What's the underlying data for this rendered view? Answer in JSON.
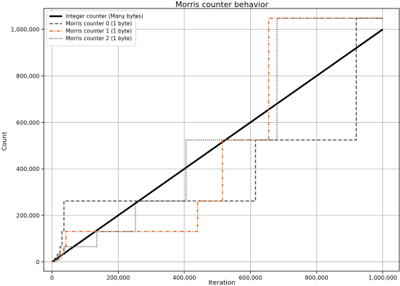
{
  "chart_data": {
    "type": "line",
    "title": "Morris counter behavior",
    "xlabel": "Iteration",
    "ylabel": "Count",
    "xlim": [
      -25000,
      1050000
    ],
    "ylim": [
      -40000,
      1090000
    ],
    "xticks": [
      0,
      200000,
      400000,
      600000,
      800000,
      1000000
    ],
    "xtick_labels": [
      "0",
      "200,000",
      "400,000",
      "600,000",
      "800,000",
      "1,000,000"
    ],
    "yticks": [
      0,
      200000,
      400000,
      600000,
      800000,
      1000000
    ],
    "ytick_labels": [
      "0",
      "200,000",
      "400,000",
      "600,000",
      "800,000",
      "1,000,000"
    ],
    "grid": true,
    "legend_position": "top-left",
    "series": [
      {
        "name": "Integer counter (Many bytes)",
        "color": "#000000",
        "dash": "solid",
        "points": [
          [
            0,
            0
          ],
          [
            1000000,
            1000000
          ]
        ]
      },
      {
        "name": "Morris counter 0 (1 byte)",
        "color": "#555555",
        "dash": "dashed",
        "points": [
          [
            0,
            0
          ],
          [
            8000,
            0
          ],
          [
            8000,
            16000
          ],
          [
            16000,
            16000
          ],
          [
            16000,
            32000
          ],
          [
            24000,
            32000
          ],
          [
            24000,
            65000
          ],
          [
            30000,
            65000
          ],
          [
            30000,
            131000
          ],
          [
            36000,
            131000
          ],
          [
            36000,
            262000
          ],
          [
            615000,
            262000
          ],
          [
            615000,
            524000
          ],
          [
            920000,
            524000
          ],
          [
            920000,
            1048000
          ],
          [
            1000000,
            1048000
          ]
        ]
      },
      {
        "name": "Morris counter 1 (1 byte)",
        "color": "#dd6622",
        "dash": "dashdot",
        "points": [
          [
            0,
            0
          ],
          [
            12000,
            0
          ],
          [
            12000,
            8000
          ],
          [
            20000,
            8000
          ],
          [
            20000,
            16000
          ],
          [
            28000,
            16000
          ],
          [
            28000,
            32000
          ],
          [
            34000,
            32000
          ],
          [
            34000,
            65000
          ],
          [
            42000,
            65000
          ],
          [
            42000,
            131000
          ],
          [
            440000,
            131000
          ],
          [
            440000,
            262000
          ],
          [
            515000,
            262000
          ],
          [
            515000,
            524000
          ],
          [
            655000,
            524000
          ],
          [
            655000,
            1048000
          ],
          [
            1000000,
            1048000
          ]
        ]
      },
      {
        "name": "Morris counter 2 (1 byte)",
        "color": "#555555",
        "dash": "dotted",
        "points": [
          [
            0,
            0
          ],
          [
            6000,
            0
          ],
          [
            6000,
            8000
          ],
          [
            14000,
            8000
          ],
          [
            14000,
            16000
          ],
          [
            22000,
            16000
          ],
          [
            22000,
            32000
          ],
          [
            38000,
            32000
          ],
          [
            38000,
            65000
          ],
          [
            135000,
            65000
          ],
          [
            135000,
            131000
          ],
          [
            252000,
            131000
          ],
          [
            252000,
            262000
          ],
          [
            405000,
            262000
          ],
          [
            405000,
            524000
          ],
          [
            680000,
            524000
          ],
          [
            680000,
            1048000
          ],
          [
            1000000,
            1048000
          ]
        ]
      }
    ]
  }
}
